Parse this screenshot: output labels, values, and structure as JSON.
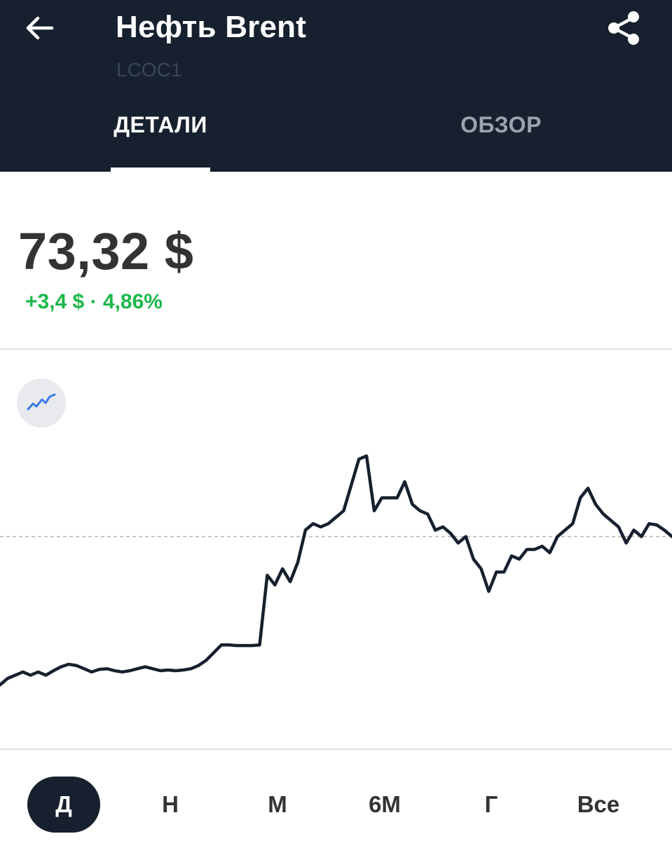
{
  "header": {
    "title": "Нефть Brent",
    "ticker": "LCOC1",
    "back_icon": "arrow-left-icon",
    "share_icon": "share-icon",
    "background": "#16202e"
  },
  "tabs": [
    {
      "label": "ДЕТАЛИ",
      "active": true
    },
    {
      "label": "ОБЗОР",
      "active": false
    }
  ],
  "quote": {
    "price": "73,32 $",
    "change": "+3,4 $ · 4,86%",
    "change_color": "#1db84a"
  },
  "chart_type_icon": "line-chart-icon",
  "chart_data": {
    "type": "line",
    "title": "",
    "xlabel": "",
    "ylabel": "",
    "ylim": [
      69.0,
      75.0
    ],
    "reference_line": 72.2,
    "grid": false,
    "legend": "none",
    "series": [
      {
        "values": [
          69.9,
          70.0,
          70.05,
          70.1,
          70.05,
          70.1,
          70.05,
          70.12,
          70.18,
          70.22,
          70.2,
          70.15,
          70.1,
          70.14,
          70.15,
          70.12,
          70.1,
          70.12,
          70.15,
          70.18,
          70.15,
          70.12,
          70.13,
          70.12,
          70.13,
          70.15,
          70.2,
          70.28,
          70.4,
          70.52,
          70.52,
          70.51,
          70.51,
          70.51,
          70.52,
          71.6,
          71.45,
          71.7,
          71.5,
          71.8,
          72.3,
          72.4,
          72.35,
          72.4,
          72.5,
          72.6,
          73.0,
          73.4,
          73.45,
          72.6,
          72.8,
          72.8,
          72.8,
          73.05,
          72.7,
          72.6,
          72.55,
          72.3,
          72.35,
          72.25,
          72.1,
          72.2,
          71.85,
          71.7,
          71.35,
          71.65,
          71.65,
          71.9,
          71.85,
          72.0,
          72.0,
          72.05,
          71.95,
          72.2,
          72.3,
          72.4,
          72.8,
          72.95,
          72.7,
          72.55,
          72.45,
          72.35,
          72.1,
          72.3,
          72.2,
          72.4,
          72.38,
          72.3,
          72.2
        ]
      }
    ]
  },
  "periods": [
    {
      "label": "Д",
      "active": true
    },
    {
      "label": "Н",
      "active": false
    },
    {
      "label": "М",
      "active": false
    },
    {
      "label": "6М",
      "active": false
    },
    {
      "label": "Г",
      "active": false
    },
    {
      "label": "Все",
      "active": false
    }
  ]
}
